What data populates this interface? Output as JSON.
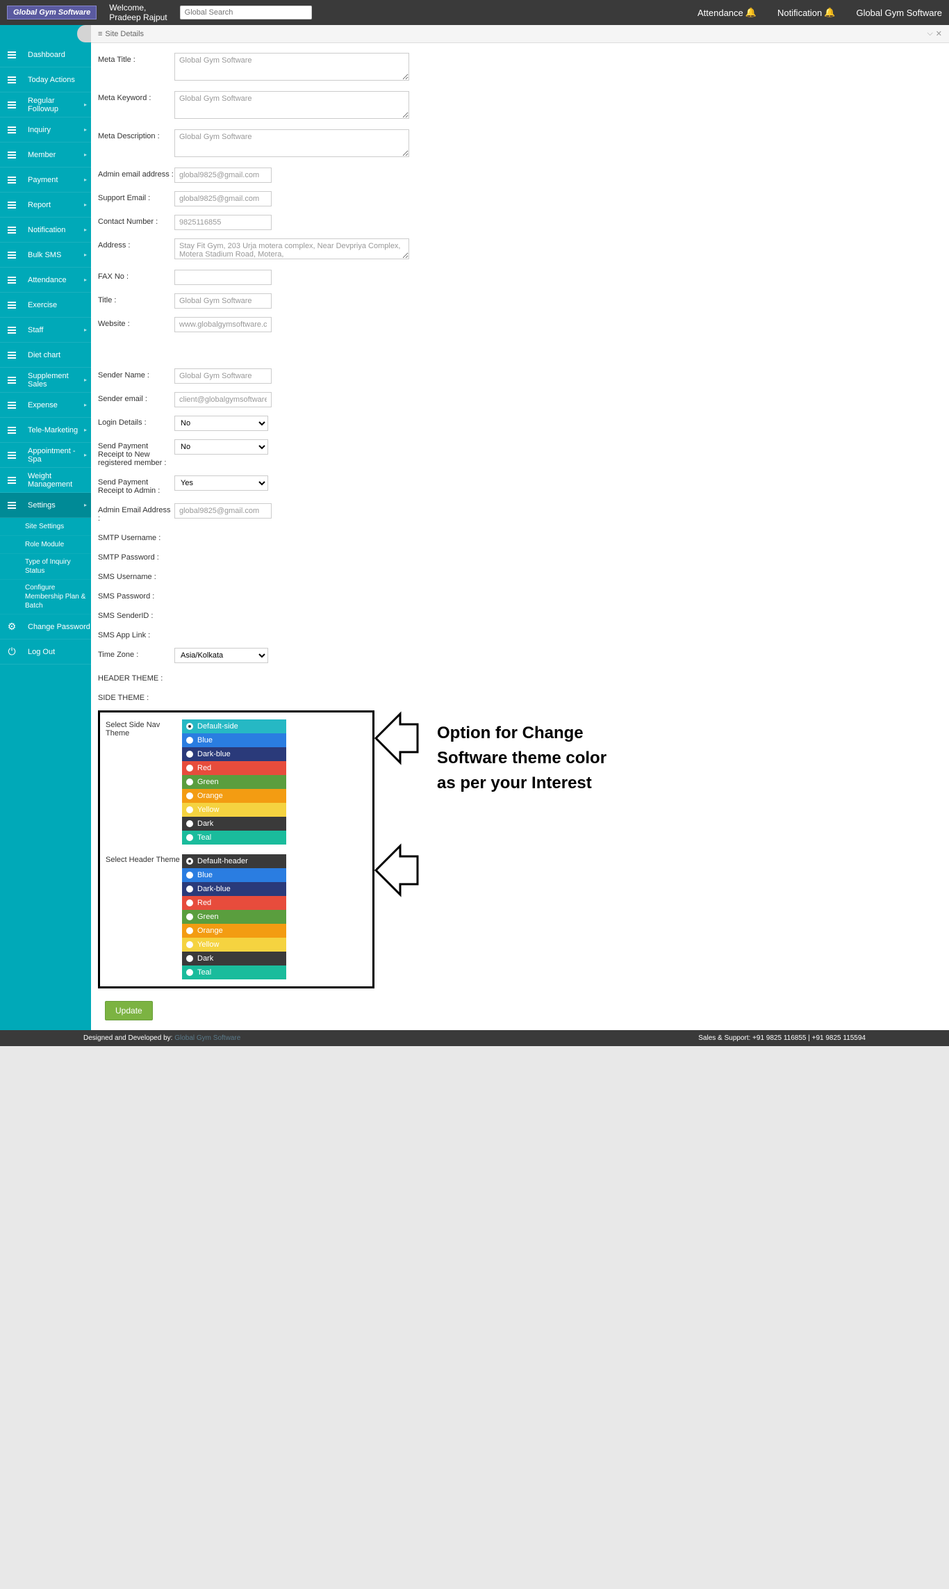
{
  "header": {
    "logo": "Global Gym Software",
    "welcome_line1": "Welcome,",
    "welcome_line2": "Pradeep Rajput",
    "search_placeholder": "Global Search",
    "attendance": "Attendance",
    "notification": "Notification",
    "brand": "Global Gym Software"
  },
  "sidebar": {
    "items": [
      {
        "label": "Dashboard",
        "arrow": false,
        "icon": "hamburger"
      },
      {
        "label": "Today Actions",
        "arrow": false,
        "icon": "hamburger"
      },
      {
        "label": "Regular Followup",
        "arrow": true,
        "icon": "hamburger"
      },
      {
        "label": "Inquiry",
        "arrow": true,
        "icon": "hamburger"
      },
      {
        "label": "Member",
        "arrow": true,
        "icon": "hamburger"
      },
      {
        "label": "Payment",
        "arrow": true,
        "icon": "hamburger"
      },
      {
        "label": "Report",
        "arrow": true,
        "icon": "hamburger"
      },
      {
        "label": "Notification",
        "arrow": true,
        "icon": "hamburger"
      },
      {
        "label": "Bulk SMS",
        "arrow": true,
        "icon": "hamburger"
      },
      {
        "label": "Attendance",
        "arrow": true,
        "icon": "hamburger"
      },
      {
        "label": "Exercise",
        "arrow": false,
        "icon": "hamburger"
      },
      {
        "label": "Staff",
        "arrow": true,
        "icon": "hamburger"
      },
      {
        "label": "Diet chart",
        "arrow": false,
        "icon": "hamburger"
      },
      {
        "label": "Supplement Sales",
        "arrow": true,
        "icon": "hamburger"
      },
      {
        "label": "Expense",
        "arrow": true,
        "icon": "hamburger"
      },
      {
        "label": "Tele-Marketing",
        "arrow": true,
        "icon": "hamburger"
      },
      {
        "label": "Appointment - Spa",
        "arrow": true,
        "icon": "hamburger"
      },
      {
        "label": "Weight Management",
        "arrow": false,
        "icon": "hamburger"
      },
      {
        "label": "Settings",
        "arrow": true,
        "icon": "hamburger",
        "active": true
      }
    ],
    "sub_items": [
      "Site Settings",
      "Role Module",
      "Type of Inquiry Status",
      "Configure Membership Plan & Batch"
    ],
    "change_password": "Change Password",
    "logout": "Log Out"
  },
  "panel": {
    "title": "Site Details"
  },
  "form": {
    "meta_title_label": "Meta Title :",
    "meta_title_value": "Global Gym Software",
    "meta_keyword_label": "Meta Keyword :",
    "meta_keyword_value": "Global Gym Software",
    "meta_desc_label": "Meta Description :",
    "meta_desc_value": "Global Gym Software",
    "admin_email_label": "Admin email address :",
    "admin_email_value": "global9825@gmail.com",
    "support_email_label": "Support Email :",
    "support_email_value": "global9825@gmail.com",
    "contact_label": "Contact Number :",
    "contact_value": "9825116855",
    "address_label": "Address :",
    "address_value": "Stay Fit Gym, 203 Urja motera complex, Near Devpriya Complex, Motera Stadium Road, Motera,",
    "fax_label": "FAX No :",
    "fax_value": "",
    "title_label": "Title :",
    "title_value": "Global Gym Software",
    "website_label": "Website :",
    "website_value": "www.globalgymsoftware.com",
    "sender_name_label": "Sender Name :",
    "sender_name_value": "Global Gym Software",
    "sender_email_label": "Sender email :",
    "sender_email_value": "client@globalgymsoftware.com",
    "login_details_label": "Login Details :",
    "login_details_value": "No",
    "send_receipt_member_label": "Send Payment Receipt to New registered member :",
    "send_receipt_member_value": "No",
    "send_receipt_admin_label": "Send Payment Receipt to Admin :",
    "send_receipt_admin_value": "Yes",
    "admin_email2_label": "Admin Email Address :",
    "admin_email2_value": "global9825@gmail.com",
    "smtp_user_label": "SMTP Username :",
    "smtp_pass_label": "SMTP Password :",
    "sms_user_label": "SMS Username :",
    "sms_pass_label": "SMS Password :",
    "sms_sender_label": "SMS SenderID :",
    "sms_app_label": "SMS App Link :",
    "timezone_label": "Time Zone :",
    "timezone_value": "Asia/Kolkata",
    "header_theme_label": "HEADER THEME :",
    "side_theme_label": "SIDE THEME :",
    "select_side_label": "Select Side Nav Theme",
    "select_header_label": "Select Header Theme",
    "update_btn": "Update"
  },
  "side_themes": [
    {
      "label": "Default-side",
      "color": "#26b8c4",
      "selected": true
    },
    {
      "label": "Blue",
      "color": "#2a7de1",
      "selected": false
    },
    {
      "label": "Dark-blue",
      "color": "#2a3a7a",
      "selected": false
    },
    {
      "label": "Red",
      "color": "#e74c3c",
      "selected": false
    },
    {
      "label": "Green",
      "color": "#5a9e3e",
      "selected": false
    },
    {
      "label": "Orange",
      "color": "#f39c12",
      "selected": false
    },
    {
      "label": "Yellow",
      "color": "#f5d340",
      "selected": false
    },
    {
      "label": "Dark",
      "color": "#3a3a3a",
      "selected": false
    },
    {
      "label": "Teal",
      "color": "#1abc9c",
      "selected": false
    }
  ],
  "header_themes": [
    {
      "label": "Default-header",
      "color": "#3a3a3a",
      "selected": true
    },
    {
      "label": "Blue",
      "color": "#2a7de1",
      "selected": false
    },
    {
      "label": "Dark-blue",
      "color": "#2a3a7a",
      "selected": false
    },
    {
      "label": "Red",
      "color": "#e74c3c",
      "selected": false
    },
    {
      "label": "Green",
      "color": "#5a9e3e",
      "selected": false
    },
    {
      "label": "Orange",
      "color": "#f39c12",
      "selected": false
    },
    {
      "label": "Yellow",
      "color": "#f5d340",
      "selected": false
    },
    {
      "label": "Dark",
      "color": "#3a3a3a",
      "selected": false
    },
    {
      "label": "Teal",
      "color": "#1abc9c",
      "selected": false
    }
  ],
  "annotation": {
    "line1": "Option for Change",
    "line2": "Software theme color",
    "line3": "as  per your Interest"
  },
  "footer": {
    "designed": "Designed and Developed by:",
    "designed_link": "Global Gym Software",
    "sales": "Sales & Support: +91 9825 116855 | +91 9825 115594"
  }
}
